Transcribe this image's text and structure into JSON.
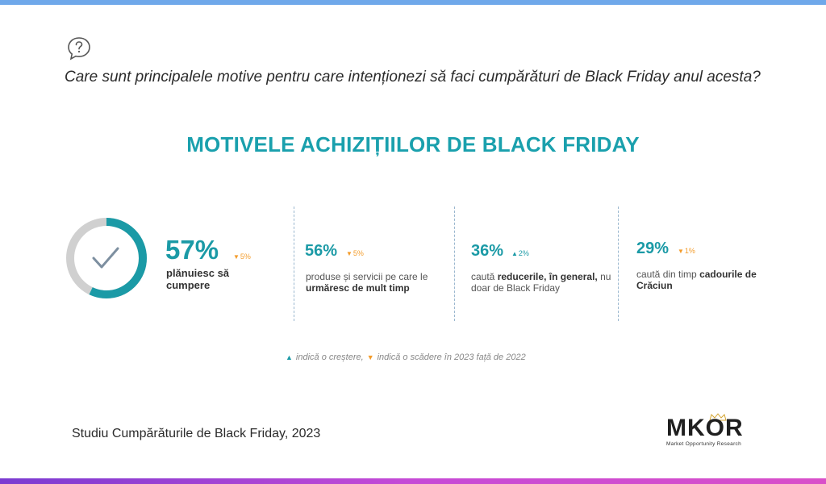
{
  "question": "Care sunt principalele motive pentru care intenționezi să faci cumpărături de Black Friday anul acesta?",
  "icons": {
    "question": "question-bubble-icon",
    "check": "check-icon"
  },
  "colors": {
    "accent": "#1b9aa6",
    "decrease": "#f39c2b",
    "neutral": "#d0d0d0",
    "title": "#1aa0ad"
  },
  "chart_data": {
    "type": "donut",
    "title": "MOTIVELE ACHIZIȚIILOR DE BLACK FRIDAY",
    "series": [
      {
        "value": 57,
        "value_label": "57%",
        "trend": "down",
        "change": 5,
        "change_label": "5%",
        "label_plain": "",
        "label_bold": "plănuiesc să cumpere"
      },
      {
        "value": 56,
        "value_label": "56%",
        "trend": "down",
        "change": 5,
        "change_label": "5%",
        "label_plain": "produse și servicii pe care le",
        "label_bold": "urmăresc de mult timp"
      },
      {
        "value": 36,
        "value_label": "36%",
        "trend": "up",
        "change": 2,
        "change_label": "2%",
        "label_plain": "caută",
        "label_bold": "reducerile, în general,",
        "label_plain2": "nu doar de Black Friday"
      },
      {
        "value": 29,
        "value_label": "29%",
        "trend": "down",
        "change": 1,
        "change_label": "1%",
        "label_plain": "caută din timp",
        "label_bold": "cadourile de Crăciun"
      }
    ],
    "legend": {
      "up_text": "indică o creștere,",
      "down_text": "indică o scădere în 2023 față de 2022"
    }
  },
  "source": "Studiu Cumpărăturile de Black Friday, 2023",
  "logo": {
    "text": "MKOR",
    "subtitle": "Market Opportunity Research"
  }
}
